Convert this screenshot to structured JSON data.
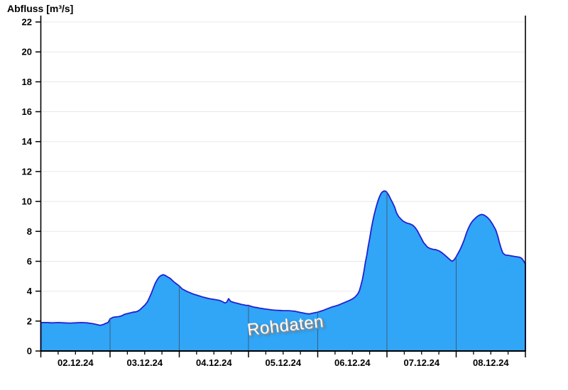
{
  "watermark": {
    "text": "Rohdaten"
  },
  "chart_data": {
    "type": "area",
    "title": "Abfluss [m³/s]",
    "ylabel": "Abfluss [m³/s]",
    "xlabel": "",
    "ylim": [
      0,
      22
    ],
    "y_ticks": [
      0,
      2,
      4,
      6,
      8,
      10,
      12,
      14,
      16,
      18,
      20,
      22
    ],
    "x_tick_labels": [
      "02.12.24",
      "03.12.24",
      "04.12.24",
      "05.12.24",
      "06.12.24",
      "07.12.24",
      "08.12.24"
    ],
    "x_range_hours": [
      0,
      168
    ],
    "x_minor_tick_hours": 6,
    "grid": true,
    "legend": "none",
    "annotations": [
      "Rohdaten"
    ],
    "colors": {
      "fill": "#31a5f6",
      "outline": "#2121d2",
      "grid": "#e8e8e8",
      "axis": "#000000",
      "day_line": "#3b5e80",
      "text": "#000000",
      "watermark": "#fdfdfd"
    },
    "series": [
      {
        "name": "Rohdaten",
        "unit": "m³/s",
        "x_unit": "hours since 02.12.24 00:00",
        "points": [
          [
            0,
            1.9
          ],
          [
            2,
            1.9
          ],
          [
            4,
            1.88
          ],
          [
            6,
            1.9
          ],
          [
            8,
            1.88
          ],
          [
            10,
            1.87
          ],
          [
            12,
            1.88
          ],
          [
            14,
            1.9
          ],
          [
            16,
            1.88
          ],
          [
            18,
            1.83
          ],
          [
            19.5,
            1.77
          ],
          [
            20.5,
            1.72
          ],
          [
            21.5,
            1.76
          ],
          [
            22.5,
            1.85
          ],
          [
            23.3,
            1.9
          ],
          [
            24,
            2.15
          ],
          [
            25,
            2.25
          ],
          [
            26,
            2.28
          ],
          [
            27,
            2.3
          ],
          [
            28,
            2.35
          ],
          [
            29,
            2.45
          ],
          [
            30,
            2.5
          ],
          [
            31,
            2.55
          ],
          [
            32,
            2.6
          ],
          [
            33,
            2.62
          ],
          [
            33.8,
            2.68
          ],
          [
            34.6,
            2.8
          ],
          [
            35.4,
            2.95
          ],
          [
            36.2,
            3.1
          ],
          [
            37,
            3.3
          ],
          [
            37.6,
            3.55
          ],
          [
            38.3,
            3.85
          ],
          [
            39,
            4.2
          ],
          [
            39.6,
            4.5
          ],
          [
            40.3,
            4.75
          ],
          [
            41,
            4.95
          ],
          [
            41.7,
            5.05
          ],
          [
            42.4,
            5.1
          ],
          [
            43.2,
            5.05
          ],
          [
            44,
            4.95
          ],
          [
            44.9,
            4.85
          ],
          [
            45.7,
            4.7
          ],
          [
            46.6,
            4.55
          ],
          [
            47.3,
            4.45
          ],
          [
            48,
            4.35
          ],
          [
            49,
            4.15
          ],
          [
            50,
            4.05
          ],
          [
            51,
            3.95
          ],
          [
            52,
            3.88
          ],
          [
            53,
            3.8
          ],
          [
            54,
            3.74
          ],
          [
            55,
            3.68
          ],
          [
            56,
            3.62
          ],
          [
            57,
            3.57
          ],
          [
            58,
            3.52
          ],
          [
            59,
            3.48
          ],
          [
            60,
            3.45
          ],
          [
            61,
            3.42
          ],
          [
            62,
            3.38
          ],
          [
            63,
            3.3
          ],
          [
            63.7,
            3.22
          ],
          [
            64.4,
            3.25
          ],
          [
            65.1,
            3.5
          ],
          [
            65.8,
            3.32
          ],
          [
            66.5,
            3.27
          ],
          [
            67.5,
            3.22
          ],
          [
            68.5,
            3.17
          ],
          [
            69.5,
            3.12
          ],
          [
            70.5,
            3.08
          ],
          [
            71.2,
            3.05
          ],
          [
            72,
            3.05
          ],
          [
            73,
            2.98
          ],
          [
            74,
            2.93
          ],
          [
            75,
            2.9
          ],
          [
            76,
            2.86
          ],
          [
            77,
            2.83
          ],
          [
            78,
            2.8
          ],
          [
            79,
            2.78
          ],
          [
            80,
            2.75
          ],
          [
            81,
            2.73
          ],
          [
            82,
            2.72
          ],
          [
            83,
            2.71
          ],
          [
            84,
            2.7
          ],
          [
            85,
            2.7
          ],
          [
            86,
            2.7
          ],
          [
            87,
            2.68
          ],
          [
            88,
            2.66
          ],
          [
            89,
            2.62
          ],
          [
            90,
            2.58
          ],
          [
            91,
            2.54
          ],
          [
            92,
            2.5
          ],
          [
            93,
            2.48
          ],
          [
            94,
            2.52
          ],
          [
            95,
            2.56
          ],
          [
            96,
            2.6
          ],
          [
            97,
            2.66
          ],
          [
            98,
            2.72
          ],
          [
            99,
            2.8
          ],
          [
            100,
            2.88
          ],
          [
            101,
            2.95
          ],
          [
            102,
            3.0
          ],
          [
            103,
            3.06
          ],
          [
            104,
            3.14
          ],
          [
            105,
            3.22
          ],
          [
            106,
            3.3
          ],
          [
            107,
            3.38
          ],
          [
            108,
            3.48
          ],
          [
            109,
            3.62
          ],
          [
            109.8,
            3.8
          ],
          [
            110.4,
            4.0
          ],
          [
            111,
            4.4
          ],
          [
            111.5,
            4.8
          ],
          [
            112,
            5.3
          ],
          [
            112.5,
            5.9
          ],
          [
            113,
            6.4
          ],
          [
            113.5,
            7.0
          ],
          [
            114,
            7.5
          ],
          [
            114.5,
            8.1
          ],
          [
            115,
            8.6
          ],
          [
            115.5,
            9.05
          ],
          [
            116,
            9.45
          ],
          [
            116.5,
            9.8
          ],
          [
            117,
            10.1
          ],
          [
            117.5,
            10.35
          ],
          [
            118,
            10.55
          ],
          [
            118.5,
            10.65
          ],
          [
            119,
            10.7
          ],
          [
            119.6,
            10.68
          ],
          [
            120,
            10.6
          ],
          [
            120.7,
            10.4
          ],
          [
            121.3,
            10.15
          ],
          [
            122,
            9.9
          ],
          [
            122.7,
            9.6
          ],
          [
            123.3,
            9.25
          ],
          [
            124,
            9.0
          ],
          [
            124.7,
            8.85
          ],
          [
            125.5,
            8.7
          ],
          [
            126.2,
            8.62
          ],
          [
            127,
            8.55
          ],
          [
            128,
            8.5
          ],
          [
            129,
            8.4
          ],
          [
            129.8,
            8.25
          ],
          [
            130.5,
            8.05
          ],
          [
            131.2,
            7.8
          ],
          [
            132,
            7.5
          ],
          [
            132.7,
            7.25
          ],
          [
            133.4,
            7.1
          ],
          [
            134,
            6.95
          ],
          [
            135,
            6.85
          ],
          [
            136,
            6.8
          ],
          [
            137,
            6.77
          ],
          [
            138,
            6.7
          ],
          [
            139,
            6.58
          ],
          [
            140,
            6.42
          ],
          [
            141,
            6.25
          ],
          [
            142,
            6.08
          ],
          [
            142.6,
            6.0
          ],
          [
            143.3,
            6.1
          ],
          [
            144,
            6.3
          ],
          [
            144.7,
            6.55
          ],
          [
            145.4,
            6.8
          ],
          [
            146.1,
            7.1
          ],
          [
            146.8,
            7.45
          ],
          [
            147.5,
            7.85
          ],
          [
            148.2,
            8.2
          ],
          [
            149,
            8.5
          ],
          [
            149.7,
            8.7
          ],
          [
            150.5,
            8.85
          ],
          [
            151.2,
            8.98
          ],
          [
            152,
            9.08
          ],
          [
            152.8,
            9.13
          ],
          [
            153.6,
            9.1
          ],
          [
            154.4,
            9.0
          ],
          [
            155,
            8.9
          ],
          [
            155.7,
            8.75
          ],
          [
            156.4,
            8.55
          ],
          [
            157,
            8.35
          ],
          [
            157.7,
            8.1
          ],
          [
            158.4,
            7.7
          ],
          [
            159,
            7.25
          ],
          [
            159.6,
            6.85
          ],
          [
            160.2,
            6.55
          ],
          [
            161,
            6.42
          ],
          [
            162,
            6.4
          ],
          [
            163,
            6.37
          ],
          [
            164,
            6.33
          ],
          [
            165,
            6.3
          ],
          [
            166,
            6.27
          ],
          [
            166.7,
            6.2
          ],
          [
            167.3,
            6.05
          ],
          [
            168,
            5.82
          ]
        ]
      }
    ]
  }
}
